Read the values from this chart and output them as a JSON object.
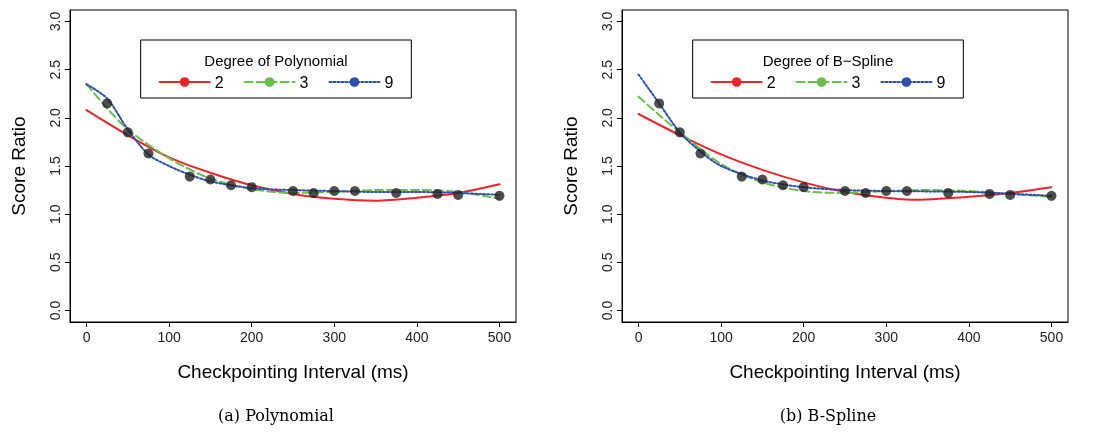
{
  "chart_data": [
    {
      "type": "line",
      "xlabel": "Checkpointing Interval (ms)",
      "ylabel": "Score Ratio",
      "legend_title": "Degree of Polynomial",
      "legend": "top",
      "grid": false,
      "annotations": [
        "(a) Polynomial"
      ],
      "xlim": [
        -20,
        520
      ],
      "ylim": [
        -0.12,
        3.12
      ],
      "xticks": [
        0,
        100,
        200,
        300,
        400,
        500
      ],
      "yticks": [
        {
          "value": 0,
          "label": "0.0"
        },
        {
          "value": 0.5,
          "label": "0.5"
        },
        {
          "value": 1,
          "label": "1.0"
        },
        {
          "value": 1.5,
          "label": "1.5"
        },
        {
          "value": 2,
          "label": "2.0"
        },
        {
          "value": 2.5,
          "label": "2.5"
        },
        {
          "value": 3,
          "label": "3.0"
        }
      ],
      "series": [
        {
          "type": "scatter",
          "marker": "circle",
          "color": "#222222",
          "x": [
            25,
            50,
            75,
            125,
            150,
            175,
            200,
            250,
            275,
            300,
            325,
            375,
            425,
            450,
            500
          ],
          "values": [
            2.15,
            1.85,
            1.63,
            1.39,
            1.36,
            1.3,
            1.28,
            1.24,
            1.22,
            1.24,
            1.24,
            1.22,
            1.21,
            1.2,
            1.19
          ]
        },
        {
          "name": "2",
          "color": "#e8262a",
          "line_style": "solid",
          "marker": "none",
          "x": [
            0,
            50,
            100,
            150,
            200,
            250,
            300,
            350,
            400,
            450,
            500
          ],
          "values": [
            2.08,
            1.82,
            1.59,
            1.43,
            1.3,
            1.21,
            1.16,
            1.14,
            1.17,
            1.22,
            1.31
          ]
        },
        {
          "name": "3",
          "color": "#6abf4b",
          "line_style": "dashed",
          "marker": "none",
          "x": [
            0,
            25,
            50,
            100,
            150,
            200,
            250,
            300,
            350,
            400,
            450,
            500
          ],
          "values": [
            2.35,
            2.1,
            1.88,
            1.58,
            1.37,
            1.26,
            1.22,
            1.23,
            1.25,
            1.25,
            1.23,
            1.16
          ]
        },
        {
          "name": "9",
          "color": "#2b4fb0",
          "line_style": "dotted",
          "marker": "none",
          "x": [
            0,
            25,
            50,
            75,
            100,
            125,
            150,
            200,
            250,
            300,
            350,
            400,
            450,
            500
          ],
          "values": [
            2.35,
            2.2,
            1.88,
            1.62,
            1.5,
            1.41,
            1.34,
            1.27,
            1.25,
            1.24,
            1.23,
            1.23,
            1.22,
            1.2
          ]
        }
      ]
    },
    {
      "type": "line",
      "xlabel": "Checkpointing Interval (ms)",
      "ylabel": "Score Ratio",
      "legend_title": "Degree of B−Spline",
      "legend": "top",
      "grid": false,
      "annotations": [
        "(b) B-Spline"
      ],
      "xlim": [
        -20,
        520
      ],
      "ylim": [
        -0.12,
        3.12
      ],
      "xticks": [
        0,
        100,
        200,
        300,
        400,
        500
      ],
      "yticks": [
        {
          "value": 0,
          "label": "0.0"
        },
        {
          "value": 0.5,
          "label": "0.5"
        },
        {
          "value": 1,
          "label": "1.0"
        },
        {
          "value": 1.5,
          "label": "1.5"
        },
        {
          "value": 2,
          "label": "2.0"
        },
        {
          "value": 2.5,
          "label": "2.5"
        },
        {
          "value": 3,
          "label": "3.0"
        }
      ],
      "series": [
        {
          "type": "scatter",
          "marker": "circle",
          "color": "#222222",
          "x": [
            25,
            50,
            75,
            125,
            150,
            175,
            200,
            250,
            275,
            300,
            325,
            375,
            425,
            450,
            500
          ],
          "values": [
            2.15,
            1.85,
            1.63,
            1.39,
            1.36,
            1.3,
            1.28,
            1.24,
            1.22,
            1.24,
            1.24,
            1.22,
            1.21,
            1.2,
            1.19
          ]
        },
        {
          "name": "2",
          "color": "#e8262a",
          "line_style": "solid",
          "marker": "none",
          "x": [
            0,
            50,
            100,
            150,
            200,
            250,
            300,
            330,
            400,
            450,
            500
          ],
          "values": [
            2.04,
            1.82,
            1.62,
            1.46,
            1.33,
            1.23,
            1.17,
            1.15,
            1.18,
            1.22,
            1.28
          ]
        },
        {
          "name": "3",
          "color": "#6abf4b",
          "line_style": "dashed",
          "marker": "none",
          "x": [
            0,
            25,
            50,
            100,
            150,
            200,
            250,
            300,
            350,
            400,
            450,
            500
          ],
          "values": [
            2.22,
            2.03,
            1.85,
            1.52,
            1.33,
            1.24,
            1.22,
            1.24,
            1.25,
            1.24,
            1.21,
            1.18
          ]
        },
        {
          "name": "9",
          "color": "#2b4fb0",
          "line_style": "dotted",
          "marker": "none",
          "x": [
            0,
            25,
            50,
            75,
            100,
            150,
            200,
            250,
            300,
            400,
            500
          ],
          "values": [
            2.45,
            2.15,
            1.85,
            1.65,
            1.5,
            1.35,
            1.28,
            1.25,
            1.24,
            1.23,
            1.19
          ]
        }
      ]
    }
  ]
}
